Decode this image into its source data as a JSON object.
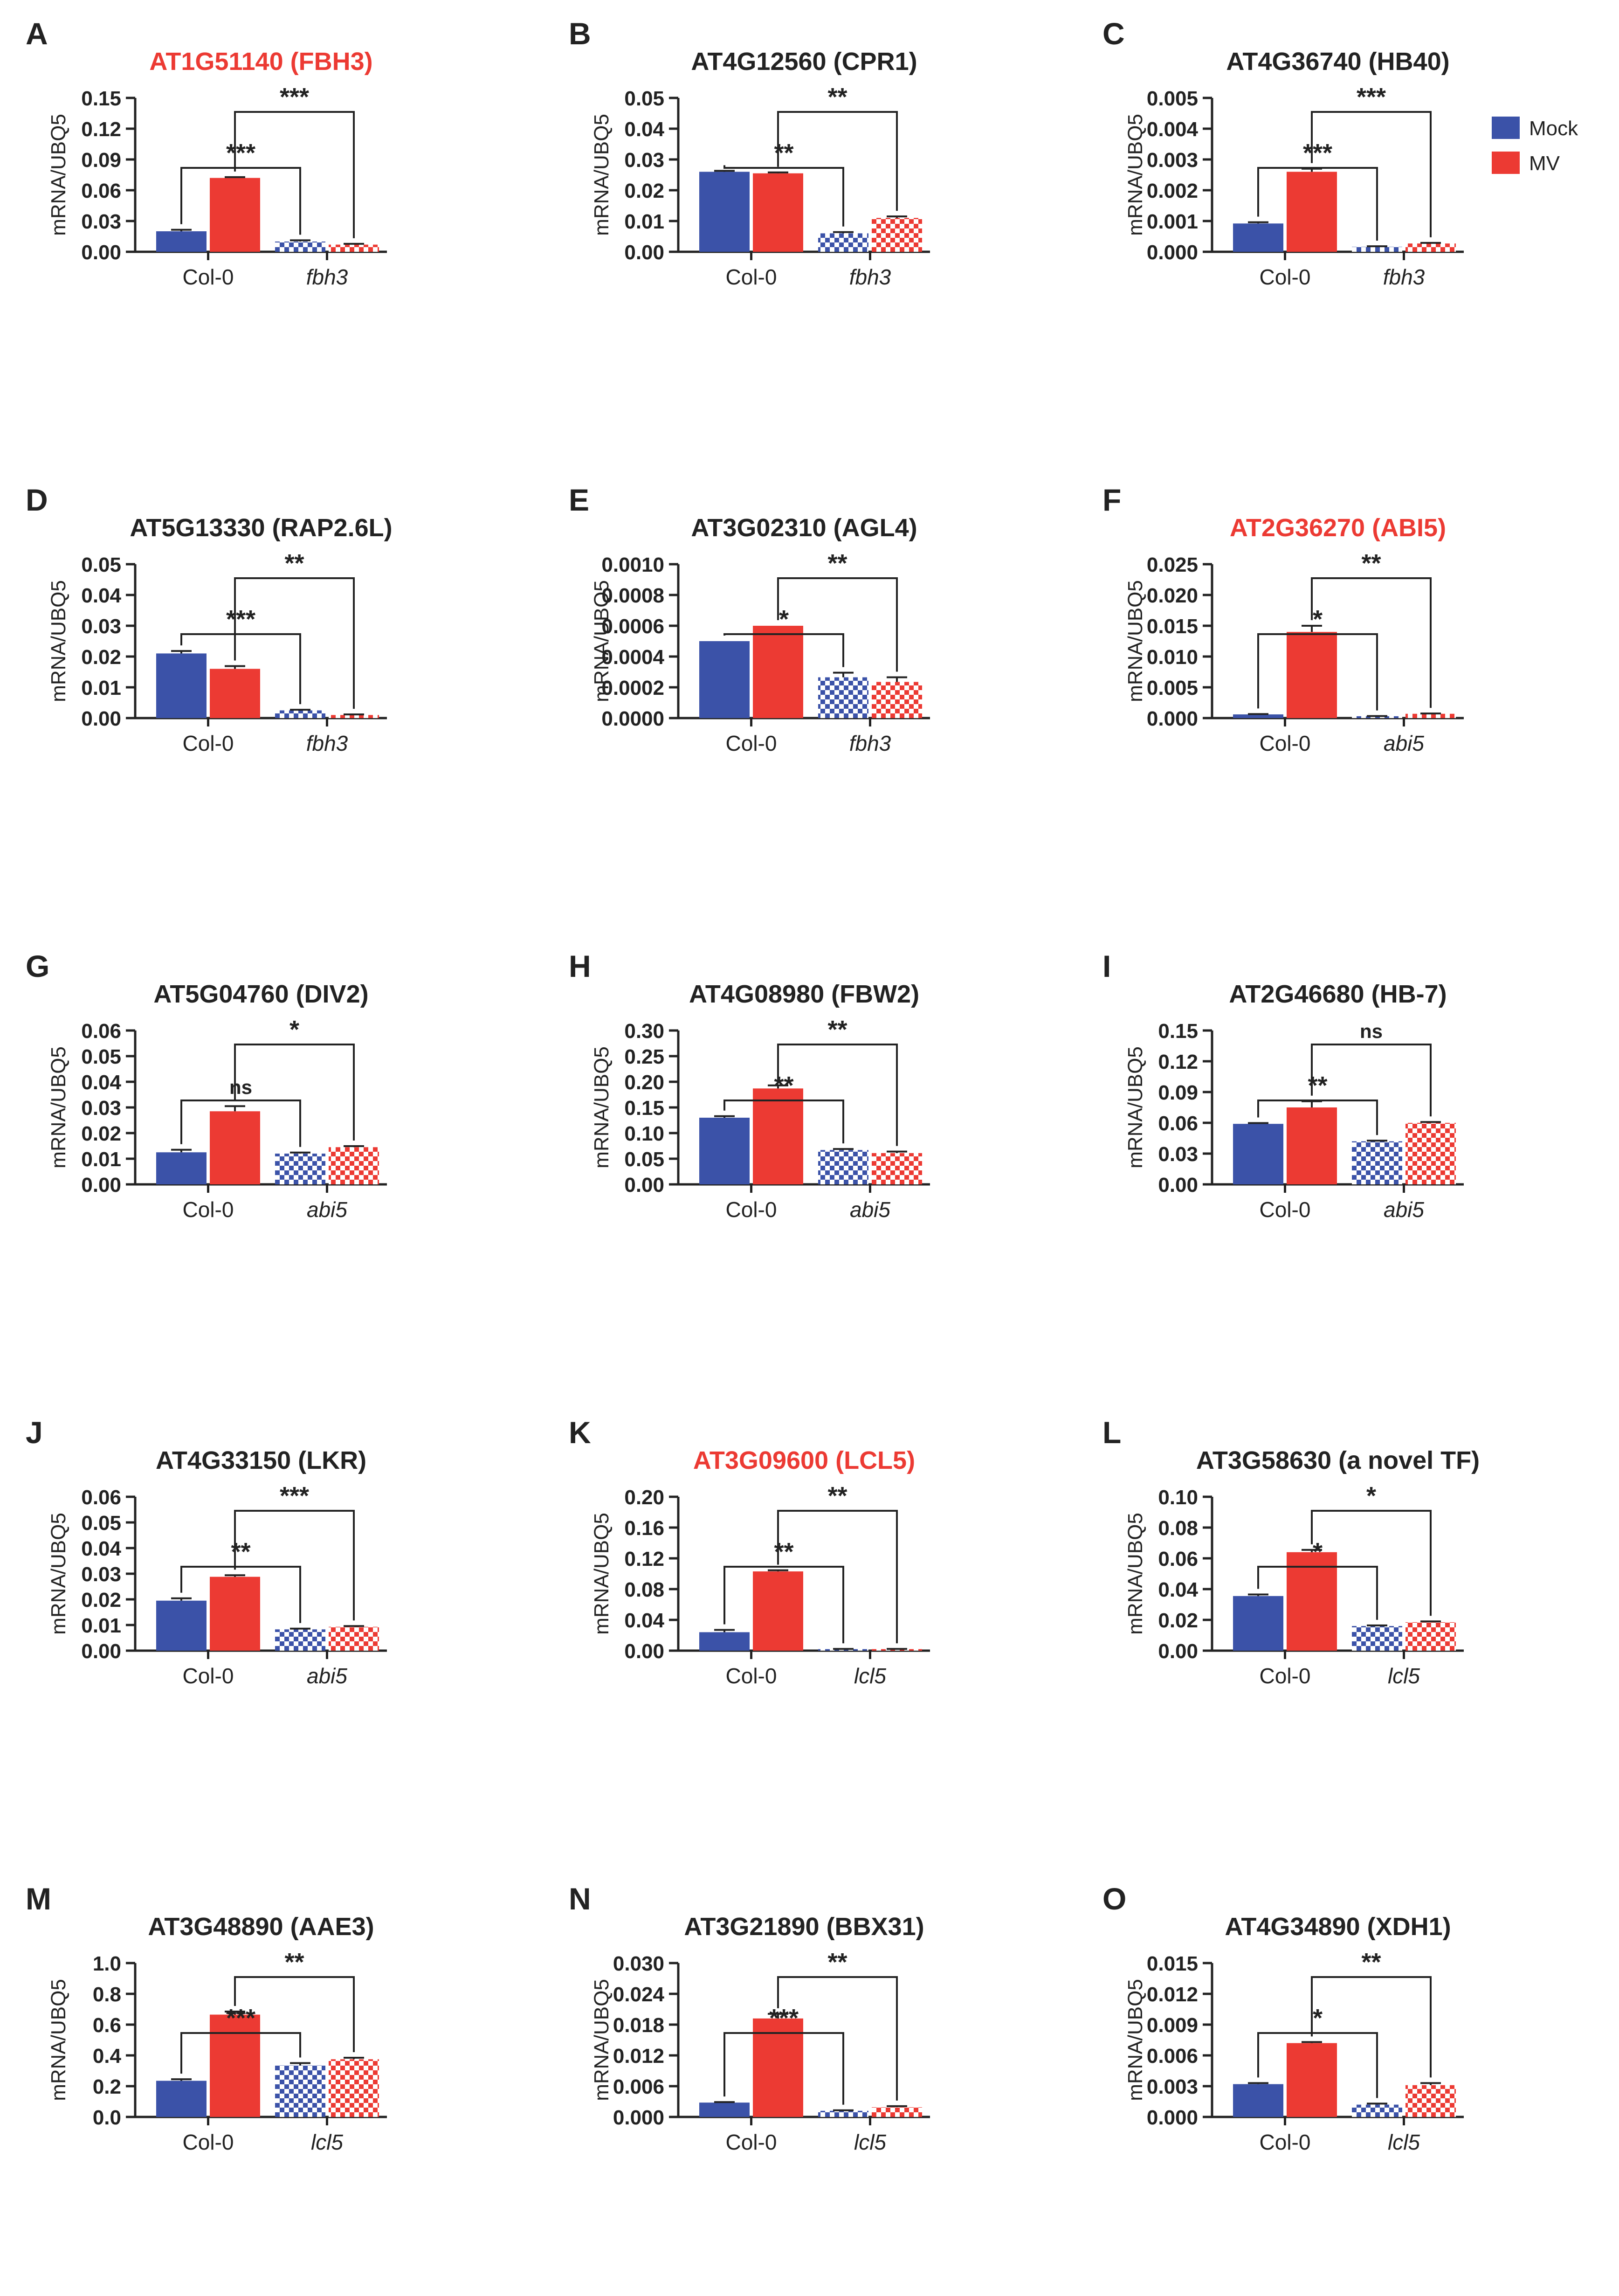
{
  "colors": {
    "mock": "#3b52a8",
    "mv": "#ec3a33",
    "title_red": "#ec3a33",
    "text": "#222222"
  },
  "legend": [
    {
      "label": "Mock",
      "color": "#3b52a8"
    },
    {
      "label": "MV",
      "color": "#ec3a33"
    }
  ],
  "chart_data": [
    {
      "type": "bar",
      "panel": "A",
      "title": "AT1G51140 (FBH3)",
      "title_highlight": true,
      "ylabel": "mRNA/UBQ5",
      "categories": [
        "Col-0",
        "fbh3"
      ],
      "yticks": [
        "0.00",
        "0.03",
        "0.06",
        "0.09",
        "0.12",
        "0.15"
      ],
      "ylim": [
        0,
        0.15
      ],
      "series": [
        {
          "name": "Mock",
          "values": [
            0.02,
            0.01
          ],
          "errors": [
            0.0015,
            0.0012
          ]
        },
        {
          "name": "MV",
          "values": [
            0.072,
            0.007
          ],
          "errors": [
            0.0008,
            0.0008
          ]
        }
      ],
      "significance": [
        {
          "label": "***",
          "from": "Col-0 Mock",
          "to": "fbh3 Mock"
        },
        {
          "label": "***",
          "from": "Col-0 MV",
          "to": "fbh3 MV"
        }
      ]
    },
    {
      "type": "bar",
      "panel": "B",
      "title": "AT4G12560 (CPR1)",
      "title_highlight": false,
      "ylabel": "mRNA/UBQ5",
      "categories": [
        "Col-0",
        "fbh3"
      ],
      "yticks": [
        "0.00",
        "0.01",
        "0.02",
        "0.03",
        "0.04",
        "0.05"
      ],
      "ylim": [
        0,
        0.05
      ],
      "series": [
        {
          "name": "Mock",
          "values": [
            0.026,
            0.006
          ],
          "errors": [
            0.0003,
            0.0004
          ]
        },
        {
          "name": "MV",
          "values": [
            0.0255,
            0.011
          ],
          "errors": [
            0.0003,
            0.0005
          ]
        }
      ],
      "significance": [
        {
          "label": "**",
          "from": "Col-0 Mock",
          "to": "fbh3 Mock"
        },
        {
          "label": "**",
          "from": "Col-0 MV",
          "to": "fbh3 MV"
        }
      ]
    },
    {
      "type": "bar",
      "panel": "C",
      "title": "AT4G36740 (HB40)",
      "title_highlight": false,
      "ylabel": "mRNA/UBQ5",
      "categories": [
        "Col-0",
        "fbh3"
      ],
      "yticks": [
        "0.000",
        "0.001",
        "0.002",
        "0.003",
        "0.004",
        "0.005"
      ],
      "ylim": [
        0,
        0.005
      ],
      "series": [
        {
          "name": "Mock",
          "values": [
            0.00092,
            0.00016
          ],
          "errors": [
            4e-05,
            2e-05
          ]
        },
        {
          "name": "MV",
          "values": [
            0.0026,
            0.00027
          ],
          "errors": [
            0.0001,
            2e-05
          ]
        }
      ],
      "significance": [
        {
          "label": "***",
          "from": "Col-0 Mock",
          "to": "fbh3 Mock"
        },
        {
          "label": "***",
          "from": "Col-0 MV",
          "to": "fbh3 MV"
        }
      ]
    },
    {
      "type": "bar",
      "panel": "D",
      "title": "AT5G13330 (RAP2.6L)",
      "title_highlight": false,
      "ylabel": "mRNA/UBQ5",
      "categories": [
        "Col-0",
        "fbh3"
      ],
      "yticks": [
        "0.00",
        "0.01",
        "0.02",
        "0.03",
        "0.04",
        "0.05"
      ],
      "ylim": [
        0,
        0.05
      ],
      "series": [
        {
          "name": "Mock",
          "values": [
            0.021,
            0.0025
          ],
          "errors": [
            0.0008,
            0.0002
          ]
        },
        {
          "name": "MV",
          "values": [
            0.016,
            0.001
          ],
          "errors": [
            0.0009,
            0.0002
          ]
        }
      ],
      "significance": [
        {
          "label": "***",
          "from": "Col-0 Mock",
          "to": "fbh3 Mock"
        },
        {
          "label": "**",
          "from": "Col-0 MV",
          "to": "fbh3 MV"
        }
      ]
    },
    {
      "type": "bar",
      "panel": "E",
      "title": "AT3G02310 (AGL4)",
      "title_highlight": false,
      "ylabel": "mRNA/UBQ5",
      "categories": [
        "Col-0",
        "fbh3"
      ],
      "yticks": [
        "0.0000",
        "0.0002",
        "0.0004",
        "0.0006",
        "0.0008",
        "0.0010"
      ],
      "ylim": [
        0,
        0.001
      ],
      "series": [
        {
          "name": "Mock",
          "values": [
            0.0005,
            0.000265
          ],
          "errors": [
            0,
            3e-05
          ]
        },
        {
          "name": "MV",
          "values": [
            0.0006,
            0.000235
          ],
          "errors": [
            0,
            3e-05
          ]
        }
      ],
      "significance": [
        {
          "label": "*",
          "from": "Col-0 Mock",
          "to": "fbh3 Mock"
        },
        {
          "label": "**",
          "from": "Col-0 MV",
          "to": "fbh3 MV"
        }
      ]
    },
    {
      "type": "bar",
      "panel": "F",
      "title": "AT2G36270 (ABI5)",
      "title_highlight": true,
      "ylabel": "mRNA/UBQ5",
      "categories": [
        "Col-0",
        "abi5"
      ],
      "yticks": [
        "0.000",
        "0.005",
        "0.010",
        "0.015",
        "0.020",
        "0.025"
      ],
      "ylim": [
        0,
        0.025
      ],
      "series": [
        {
          "name": "Mock",
          "values": [
            0.0006,
            0.0003
          ],
          "errors": [
            5e-05,
            3e-05
          ]
        },
        {
          "name": "MV",
          "values": [
            0.014,
            0.0007
          ],
          "errors": [
            0.001,
            5e-05
          ]
        }
      ],
      "significance": [
        {
          "label": "*",
          "from": "Col-0 Mock",
          "to": "abi5 Mock"
        },
        {
          "label": "**",
          "from": "Col-0 MV",
          "to": "abi5 MV"
        }
      ]
    },
    {
      "type": "bar",
      "panel": "G",
      "title": "AT5G04760 (DIV2)",
      "title_highlight": false,
      "ylabel": "mRNA/UBQ5",
      "categories": [
        "Col-0",
        "abi5"
      ],
      "yticks": [
        "0.00",
        "0.01",
        "0.02",
        "0.03",
        "0.04",
        "0.05",
        "0.06"
      ],
      "ylim": [
        0,
        0.06
      ],
      "series": [
        {
          "name": "Mock",
          "values": [
            0.0125,
            0.012
          ],
          "errors": [
            0.001,
            0.0004
          ]
        },
        {
          "name": "MV",
          "values": [
            0.0285,
            0.0145
          ],
          "errors": [
            0.002,
            0.0004
          ]
        }
      ],
      "significance": [
        {
          "label": "ns",
          "from": "Col-0 Mock",
          "to": "abi5 Mock"
        },
        {
          "label": "*",
          "from": "Col-0 MV",
          "to": "abi5 MV"
        }
      ]
    },
    {
      "type": "bar",
      "panel": "H",
      "title": "AT4G08980 (FBW2)",
      "title_highlight": false,
      "ylabel": "mRNA/UBQ5",
      "categories": [
        "Col-0",
        "abi5"
      ],
      "yticks": [
        "0.00",
        "0.05",
        "0.10",
        "0.15",
        "0.20",
        "0.25",
        "0.30"
      ],
      "ylim": [
        0,
        0.3
      ],
      "series": [
        {
          "name": "Mock",
          "values": [
            0.13,
            0.067
          ],
          "errors": [
            0.003,
            0.002
          ]
        },
        {
          "name": "MV",
          "values": [
            0.187,
            0.061
          ],
          "errors": [
            0.006,
            0.003
          ]
        }
      ],
      "significance": [
        {
          "label": "**",
          "from": "Col-0 Mock",
          "to": "abi5 Mock"
        },
        {
          "label": "**",
          "from": "Col-0 MV",
          "to": "abi5 MV"
        }
      ]
    },
    {
      "type": "bar",
      "panel": "I",
      "title": "AT2G46680 (HB-7)",
      "title_highlight": false,
      "ylabel": "mRNA/UBQ5",
      "categories": [
        "Col-0",
        "abi5"
      ],
      "yticks": [
        "0.00",
        "0.03",
        "0.06",
        "0.09",
        "0.12",
        "0.15"
      ],
      "ylim": [
        0,
        0.15
      ],
      "series": [
        {
          "name": "Mock",
          "values": [
            0.059,
            0.042
          ],
          "errors": [
            0.0008,
            0.0006
          ]
        },
        {
          "name": "MV",
          "values": [
            0.075,
            0.06
          ],
          "errors": [
            0.006,
            0.0008
          ]
        }
      ],
      "significance": [
        {
          "label": "**",
          "from": "Col-0 Mock",
          "to": "abi5 Mock"
        },
        {
          "label": "ns",
          "from": "Col-0 MV",
          "to": "abi5 MV"
        }
      ]
    },
    {
      "type": "bar",
      "panel": "J",
      "title": "AT4G33150 (LKR)",
      "title_highlight": false,
      "ylabel": "mRNA/UBQ5",
      "categories": [
        "Col-0",
        "abi5"
      ],
      "yticks": [
        "0.00",
        "0.01",
        "0.02",
        "0.03",
        "0.04",
        "0.05",
        "0.06"
      ],
      "ylim": [
        0,
        0.06
      ],
      "series": [
        {
          "name": "Mock",
          "values": [
            0.0195,
            0.0083
          ],
          "errors": [
            0.0009,
            0.0003
          ]
        },
        {
          "name": "MV",
          "values": [
            0.0288,
            0.0093
          ],
          "errors": [
            0.0006,
            0.0003
          ]
        }
      ],
      "significance": [
        {
          "label": "**",
          "from": "Col-0 Mock",
          "to": "abi5 Mock"
        },
        {
          "label": "***",
          "from": "Col-0 MV",
          "to": "abi5 MV"
        }
      ]
    },
    {
      "type": "bar",
      "panel": "K",
      "title": "AT3G09600 (LCL5)",
      "title_highlight": true,
      "ylabel": "mRNA/UBQ5",
      "categories": [
        "Col-0",
        "lcl5"
      ],
      "yticks": [
        "0.00",
        "0.04",
        "0.08",
        "0.12",
        "0.16",
        "0.20"
      ],
      "ylim": [
        0,
        0.2
      ],
      "series": [
        {
          "name": "Mock",
          "values": [
            0.024,
            0.002
          ],
          "errors": [
            0.003,
            0.0003
          ]
        },
        {
          "name": "MV",
          "values": [
            0.103,
            0.002
          ],
          "errors": [
            0.0015,
            0.0003
          ]
        }
      ],
      "significance": [
        {
          "label": "**",
          "from": "Col-0 Mock",
          "to": "lcl5 Mock"
        },
        {
          "label": "**",
          "from": "Col-0 MV",
          "to": "lcl5 MV"
        }
      ]
    },
    {
      "type": "bar",
      "panel": "L",
      "title": "AT3G58630 (a novel TF)",
      "title_highlight": false,
      "ylabel": "mRNA/UBQ5",
      "categories": [
        "Col-0",
        "lcl5"
      ],
      "yticks": [
        "0.00",
        "0.02",
        "0.04",
        "0.06",
        "0.08",
        "0.10"
      ],
      "ylim": [
        0,
        0.1
      ],
      "series": [
        {
          "name": "Mock",
          "values": [
            0.0355,
            0.016
          ],
          "errors": [
            0.001,
            0.0004
          ]
        },
        {
          "name": "MV",
          "values": [
            0.064,
            0.0185
          ],
          "errors": [
            0.0015,
            0.0005
          ]
        }
      ],
      "significance": [
        {
          "label": "*",
          "from": "Col-0 Mock",
          "to": "lcl5 Mock"
        },
        {
          "label": "*",
          "from": "Col-0 MV",
          "to": "lcl5 MV"
        }
      ]
    },
    {
      "type": "bar",
      "panel": "M",
      "title": "AT3G48890 (AAE3)",
      "title_highlight": false,
      "ylabel": "mRNA/UBQ5",
      "categories": [
        "Col-0",
        "lcl5"
      ],
      "yticks": [
        "0.0",
        "0.2",
        "0.4",
        "0.6",
        "0.8",
        "1.0"
      ],
      "ylim": [
        0,
        1.0
      ],
      "series": [
        {
          "name": "Mock",
          "values": [
            0.235,
            0.335
          ],
          "errors": [
            0.01,
            0.015
          ]
        },
        {
          "name": "MV",
          "values": [
            0.665,
            0.375
          ],
          "errors": [
            0.02,
            0.01
          ]
        }
      ],
      "significance": [
        {
          "label": "***",
          "from": "Col-0 Mock",
          "to": "lcl5 Mock"
        },
        {
          "label": "**",
          "from": "Col-0 MV",
          "to": "lcl5 MV"
        }
      ]
    },
    {
      "type": "bar",
      "panel": "N",
      "title": "AT3G21890 (BBX31)",
      "title_highlight": false,
      "ylabel": "mRNA/UBQ5",
      "categories": [
        "Col-0",
        "lcl5"
      ],
      "yticks": [
        "0.000",
        "0.006",
        "0.012",
        "0.018",
        "0.024",
        "0.030"
      ],
      "ylim": [
        0,
        0.03
      ],
      "series": [
        {
          "name": "Mock",
          "values": [
            0.0028,
            0.0012
          ],
          "errors": [
            0.0001,
            0.0001
          ]
        },
        {
          "name": "MV",
          "values": [
            0.0192,
            0.0019
          ],
          "errors": [
            0.0009,
            0.0002
          ]
        }
      ],
      "significance": [
        {
          "label": "***",
          "from": "Col-0 Mock",
          "to": "lcl5 Mock"
        },
        {
          "label": "**",
          "from": "Col-0 MV",
          "to": "lcl5 MV"
        }
      ]
    },
    {
      "type": "bar",
      "panel": "O",
      "title": "AT4G34890 (XDH1)",
      "title_highlight": false,
      "ylabel": "mRNA/UBQ5",
      "categories": [
        "Col-0",
        "lcl5"
      ],
      "yticks": [
        "0.000",
        "0.003",
        "0.006",
        "0.009",
        "0.012",
        "0.015"
      ],
      "ylim": [
        0,
        0.015
      ],
      "series": [
        {
          "name": "Mock",
          "values": [
            0.0032,
            0.0012
          ],
          "errors": [
            0.0001,
            0.0001
          ]
        },
        {
          "name": "MV",
          "values": [
            0.0072,
            0.0031
          ],
          "errors": [
            0.0001,
            0.0002
          ]
        }
      ],
      "significance": [
        {
          "label": "*",
          "from": "Col-0 Mock",
          "to": "lcl5 Mock"
        },
        {
          "label": "**",
          "from": "Col-0 MV",
          "to": "lcl5 MV"
        }
      ]
    }
  ]
}
